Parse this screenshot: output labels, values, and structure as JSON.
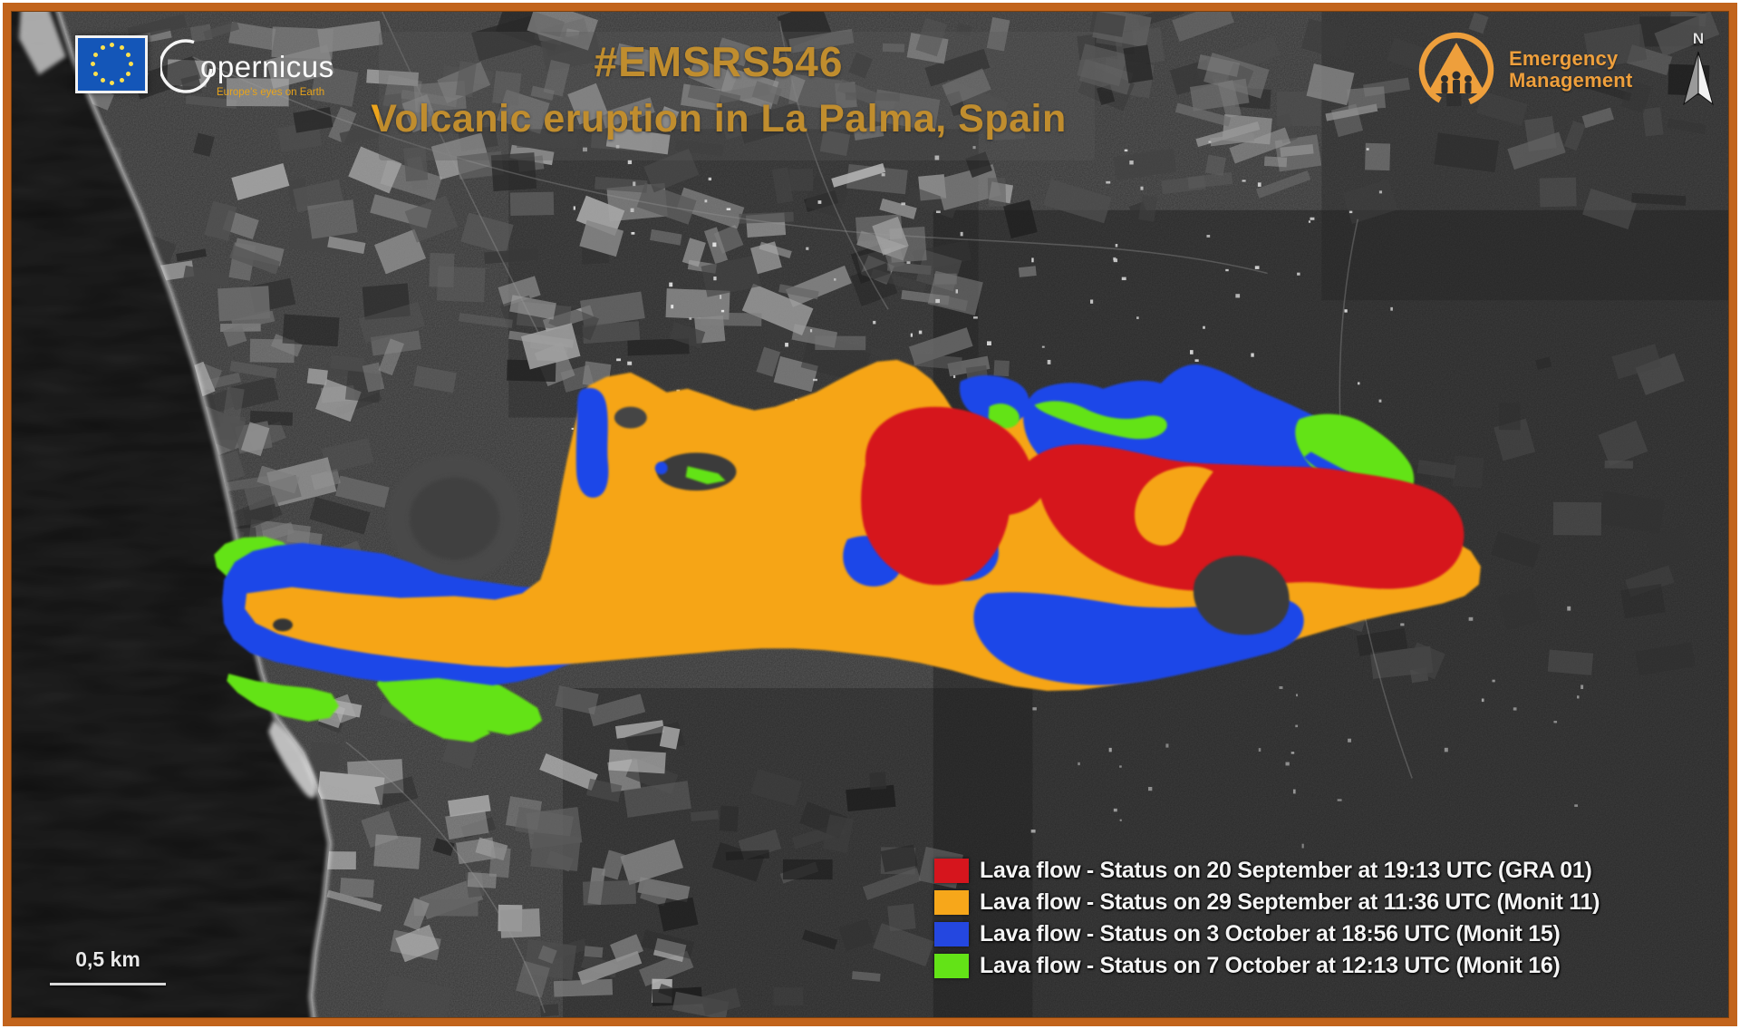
{
  "header": {
    "hashtag": "#EMSRS546",
    "title": "Volcanic eruption in La Palma, Spain",
    "accent_color": "#eca41c"
  },
  "branding": {
    "copernicus": {
      "name_initial": "C",
      "name_rest": "opernicus",
      "tagline": "Europe's eyes on Earth"
    },
    "emergency_management": {
      "line1": "Emergency",
      "line2": "Management",
      "color": "#ee9f3c"
    }
  },
  "north_indicator": {
    "label": "N"
  },
  "scale_bar": {
    "label": "0,5 km"
  },
  "legend": {
    "items": [
      {
        "color": "#d6151d",
        "label": "Lava flow - Status on 20 September at 19:13 UTC (GRA 01)"
      },
      {
        "color": "#f7a71a",
        "label": "Lava flow - Status on 29 September at 11:36 UTC (Monit 11)"
      },
      {
        "color": "#2447e0",
        "label": "Lava flow - Status on 3 October at 18:56 UTC (Monit 15)"
      },
      {
        "color": "#63e317",
        "label": "Lava flow - Status on 7 October at 12:13 UTC (Monit 16)"
      }
    ]
  },
  "map_colors": {
    "lava_red": "#d6151d",
    "lava_orange": "#f6a519",
    "lava_blue": "#1f46e8",
    "lava_green": "#63e317",
    "ocean": "#101010",
    "land": "#2e2e2e"
  }
}
